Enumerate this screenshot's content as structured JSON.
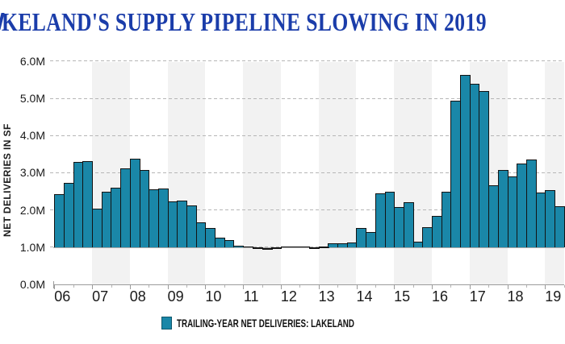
{
  "title": {
    "text": "KELAND'S SUPPLY PIPELINE SLOWING IN 2019",
    "color": "#1B3DAA"
  },
  "legend": {
    "label": "TRAILING-YEAR NET DELIVERIES: LAKELAND",
    "swatch_color": "#1A87A8"
  },
  "y_axis_title": "NET DELIVERIES IN SF",
  "chart_data": {
    "type": "bar",
    "title": "KELAND'S SUPPLY PIPELINE SLOWING IN 2019",
    "series_name": "TRAILING-YEAR NET DELIVERIES: LAKELAND",
    "ylabel": "NET DELIVERIES IN SF",
    "unit": "millions of square feet",
    "frequency": "quarterly",
    "start_period": "2006 Q1",
    "categories": [
      "06",
      "07",
      "08",
      "09",
      "10",
      "11",
      "12",
      "13",
      "14",
      "15",
      "16",
      "17",
      "18",
      "19"
    ],
    "values": [
      2.42,
      2.73,
      3.28,
      3.32,
      2.03,
      2.48,
      2.6,
      3.12,
      3.37,
      3.07,
      2.55,
      2.57,
      2.23,
      2.26,
      2.12,
      1.67,
      1.51,
      1.25,
      1.19,
      1.04,
      1.01,
      0.97,
      0.96,
      0.97,
      1.02,
      1.02,
      1.01,
      0.98,
      0.99,
      1.11,
      1.11,
      1.12,
      1.52,
      1.41,
      2.44,
      2.5,
      2.08,
      2.21,
      1.14,
      1.53,
      1.84,
      2.5,
      4.93,
      5.63,
      5.4,
      5.2,
      2.66,
      3.07,
      2.91,
      3.25,
      3.35,
      2.47,
      2.53,
      2.11
    ],
    "y_tick_labels": [
      "0.0M",
      "1.0M",
      "2.0M",
      "3.0M",
      "4.0M",
      "5.0M",
      "6.0M"
    ],
    "ylim": [
      0,
      6.0
    ],
    "bar_baseline": 1.0,
    "shaded_year_labels": [
      "07",
      "09",
      "11",
      "13",
      "15",
      "17",
      "19"
    ],
    "grid": "horizontal-dashed",
    "legend_position": "bottom",
    "bar_color": "#1A87A8",
    "bar_border_color": "#131313",
    "band_color": "#F2F2F2"
  }
}
